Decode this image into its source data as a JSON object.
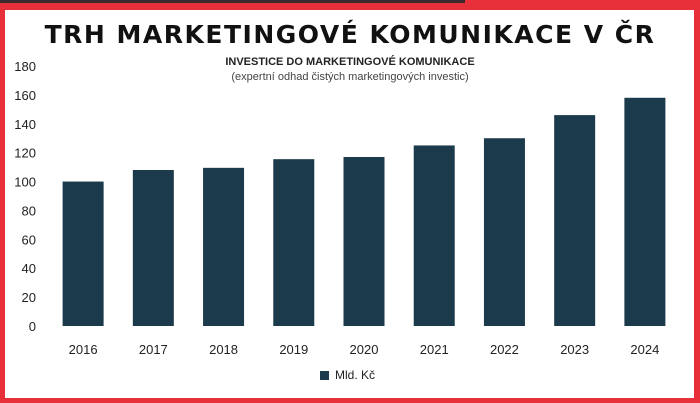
{
  "chart_data": {
    "type": "bar",
    "title": "TRH MARKETINGOVÉ KOMUNIKACE V ČR",
    "subtitle": "INVESTICE DO MARKETINGOVÉ KOMUNIKACE",
    "subtitle2": "(expertní odhad čistých marketingových investic)",
    "categories": [
      "2016",
      "2017",
      "2018",
      "2019",
      "2020",
      "2021",
      "2022",
      "2023",
      "2024"
    ],
    "series": [
      {
        "name": "Mld. Kč",
        "values": [
          100,
          108,
          109.5,
          115.5,
          117,
          125,
          130,
          146,
          158
        ],
        "color": "#1b3a4b"
      }
    ],
    "ylim": [
      0,
      180
    ],
    "yticks": [
      0,
      20,
      40,
      60,
      80,
      100,
      120,
      140,
      160,
      180
    ],
    "grid": false,
    "legend": "bottom"
  }
}
